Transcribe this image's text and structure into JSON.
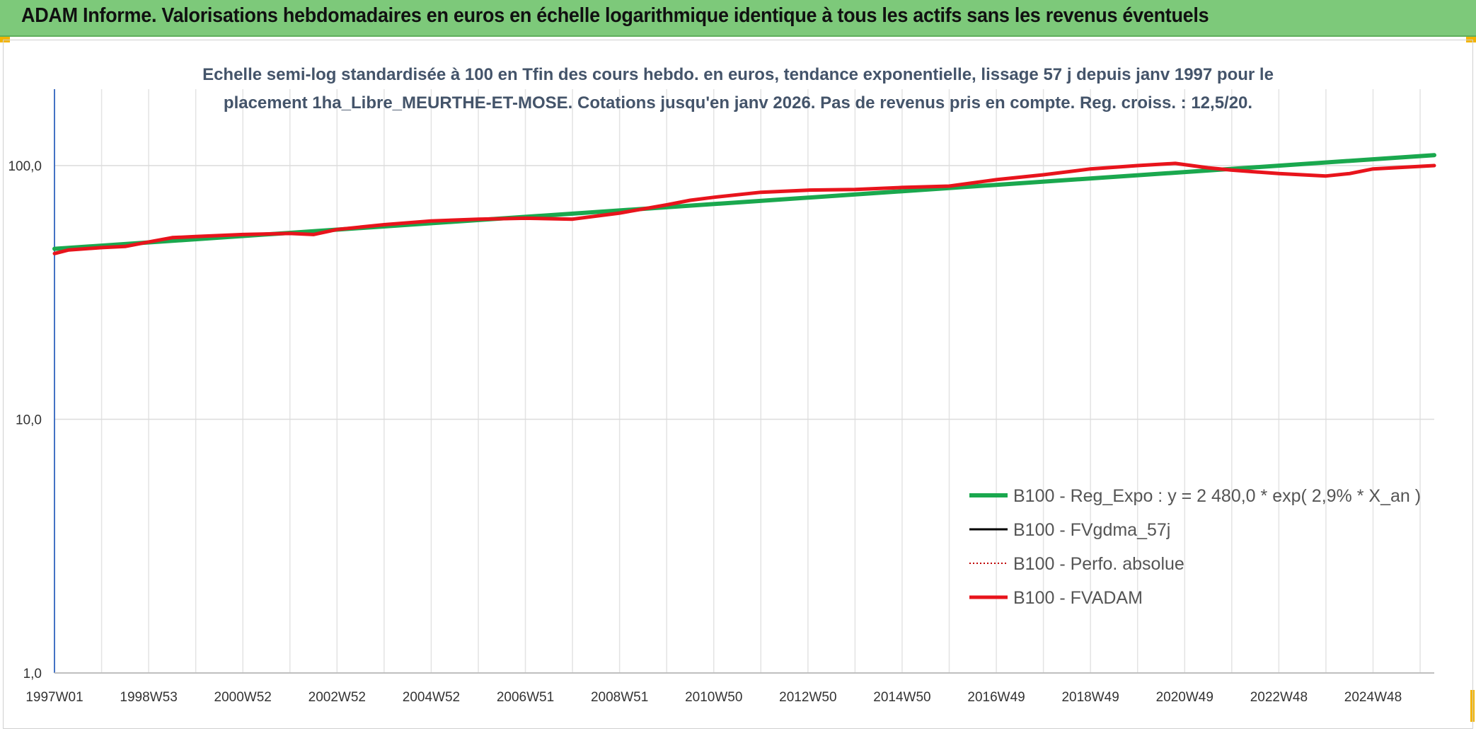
{
  "header": {
    "title": "ADAM Informe. Valorisations hebdomadaires en euros en échelle logarithmique identique à tous les actifs sans les revenus éventuels"
  },
  "colors": {
    "header_bg": "#7dc97a",
    "trend": "#1aa84e",
    "fvadam": "#e8141c",
    "fvgdma": "#000000",
    "perfo": "#c00000",
    "accent": "#f2b400"
  },
  "chart_data": {
    "type": "line",
    "title_lines": [
      "Echelle semi-log standardisée à 100 en Tfin des cours hebdo. en euros, tendance exponentielle, lissage 57 j depuis janv 1997 pour le",
      "placement 1ha_Libre_MEURTHE-ET-MOSE. Cotations jusqu'en janv 2026. Pas de revenus pris en compte. Reg. croiss. : 12,5/20."
    ],
    "y_scale": "log",
    "ylim": [
      1,
      200
    ],
    "y_ticks": [
      {
        "value": 1,
        "label": "1,0"
      },
      {
        "value": 10,
        "label": "10,0"
      },
      {
        "value": 100,
        "label": "100,0"
      }
    ],
    "xlim": [
      1997.0,
      2026.3
    ],
    "x_ticks": [
      {
        "value": 1997.0,
        "label": "1997W01"
      },
      {
        "value": 1999.0,
        "label": "1998W53"
      },
      {
        "value": 2001.0,
        "label": "2000W52"
      },
      {
        "value": 2003.0,
        "label": "2002W52"
      },
      {
        "value": 2005.0,
        "label": "2004W52"
      },
      {
        "value": 2007.0,
        "label": "2006W51"
      },
      {
        "value": 2009.0,
        "label": "2008W51"
      },
      {
        "value": 2011.0,
        "label": "2010W50"
      },
      {
        "value": 2013.0,
        "label": "2012W50"
      },
      {
        "value": 2015.0,
        "label": "2014W50"
      },
      {
        "value": 2017.0,
        "label": "2016W49"
      },
      {
        "value": 2019.0,
        "label": "2018W49"
      },
      {
        "value": 2021.0,
        "label": "2020W49"
      },
      {
        "value": 2023.0,
        "label": "2022W48"
      },
      {
        "value": 2025.0,
        "label": "2024W48"
      }
    ],
    "grid": true,
    "legend_position": "right-middle",
    "series": [
      {
        "name": "B100 - Reg_Expo : y = 2 480,0 * exp( 2,9% *  X_an )",
        "color": "#1aa84e",
        "style": "solid",
        "width": 6,
        "x": [
          1997.0,
          2026.3
        ],
        "y": [
          47.0,
          110.0
        ]
      },
      {
        "name": "B100 - FVgdma_57j",
        "color": "#000000",
        "style": "solid",
        "width": 3,
        "x": [],
        "y": []
      },
      {
        "name": "B100 - Perfo. absolue",
        "color": "#c00000",
        "style": "dotted",
        "width": 2,
        "x": [],
        "y": []
      },
      {
        "name": "B100 - FVADAM",
        "color": "#e8141c",
        "style": "solid",
        "width": 5,
        "x": [
          1997.0,
          1997.3,
          1998.0,
          1998.5,
          1999.0,
          1999.5,
          2000.0,
          2001.0,
          2002.0,
          2002.5,
          2003.0,
          2004.0,
          2005.0,
          2006.0,
          2007.0,
          2008.0,
          2009.0,
          2010.0,
          2010.5,
          2011.0,
          2012.0,
          2013.0,
          2014.0,
          2015.0,
          2016.0,
          2017.0,
          2018.0,
          2019.0,
          2020.0,
          2020.8,
          2021.5,
          2022.0,
          2023.0,
          2024.0,
          2024.5,
          2025.0,
          2026.3
        ],
        "y": [
          45.0,
          46.5,
          47.5,
          48.0,
          50.0,
          52.0,
          52.5,
          53.5,
          54.0,
          53.5,
          56.0,
          58.5,
          60.5,
          61.5,
          62.0,
          61.5,
          65.0,
          70.0,
          73.0,
          75.0,
          78.5,
          80.0,
          80.5,
          82.0,
          83.0,
          88.0,
          92.0,
          97.0,
          100.0,
          102.0,
          98.0,
          96.0,
          93.0,
          91.0,
          93.0,
          97.0,
          100.0
        ]
      }
    ]
  }
}
